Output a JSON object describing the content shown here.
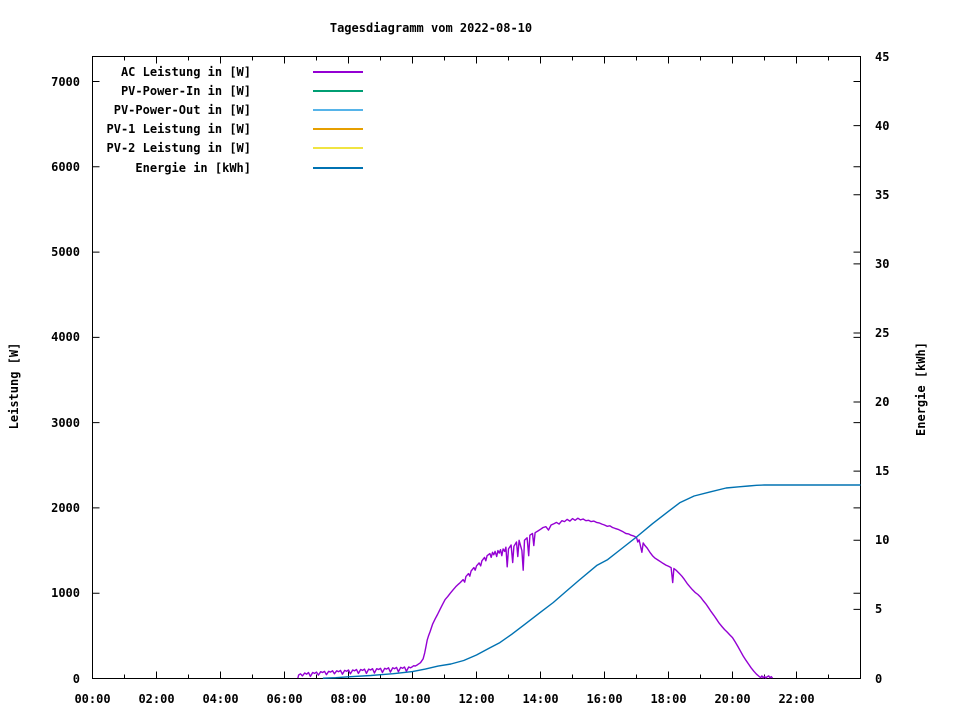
{
  "chart_data": {
    "type": "line",
    "title": "Tagesdiagramm vom 2022-08-10",
    "x_axis": {
      "unit": "time-of-day",
      "range_hours": [
        0,
        24
      ],
      "minor_tick_every_hours": 1,
      "grid": false,
      "major_ticks": [
        {
          "h": 0,
          "label": "00:00"
        },
        {
          "h": 2,
          "label": "02:00"
        },
        {
          "h": 4,
          "label": "04:00"
        },
        {
          "h": 6,
          "label": "06:00"
        },
        {
          "h": 8,
          "label": "08:00"
        },
        {
          "h": 10,
          "label": "10:00"
        },
        {
          "h": 12,
          "label": "12:00"
        },
        {
          "h": 14,
          "label": "14:00"
        },
        {
          "h": 16,
          "label": "16:00"
        },
        {
          "h": 18,
          "label": "18:00"
        },
        {
          "h": 20,
          "label": "20:00"
        },
        {
          "h": 22,
          "label": "22:00"
        }
      ]
    },
    "y_left": {
      "label": "Leistung [W]",
      "range": [
        0,
        7320
      ],
      "ticks": [
        0,
        1000,
        2000,
        3000,
        4000,
        5000,
        6000,
        7000
      ]
    },
    "y_right": {
      "label": "Energie [kWh]",
      "range": [
        0,
        45
      ],
      "ticks": [
        0,
        5,
        10,
        15,
        20,
        25,
        30,
        35,
        40,
        45
      ]
    },
    "legend": {
      "position": "top-left-inside",
      "entries": [
        {
          "id": "ac-leistung",
          "label": "AC Leistung in [W]",
          "color": "#9400d3"
        },
        {
          "id": "pv-power-in",
          "label": "PV-Power-In in [W]",
          "color": "#009e73"
        },
        {
          "id": "pv-power-out",
          "label": "PV-Power-Out in [W]",
          "color": "#56b4e9"
        },
        {
          "id": "pv1-leistung",
          "label": "PV-1 Leistung in [W]",
          "color": "#e69f00"
        },
        {
          "id": "pv2-leistung",
          "label": "PV-2 Leistung in [W]",
          "color": "#f0e442"
        },
        {
          "id": "energie",
          "label": "Energie in [kWh]",
          "color": "#0072b2"
        }
      ]
    },
    "series": [
      {
        "id": "ac-leistung",
        "name": "AC Leistung in [W]",
        "axis": "left",
        "color": "#9400d3",
        "points": [
          [
            6.42,
            5
          ],
          [
            6.44,
            40
          ],
          [
            6.5,
            55
          ],
          [
            6.56,
            30
          ],
          [
            6.63,
            65
          ],
          [
            6.69,
            50
          ],
          [
            6.75,
            70
          ],
          [
            6.81,
            25
          ],
          [
            6.88,
            70
          ],
          [
            6.94,
            60
          ],
          [
            7.0,
            75
          ],
          [
            7.06,
            40
          ],
          [
            7.13,
            80
          ],
          [
            7.19,
            70
          ],
          [
            7.25,
            85
          ],
          [
            7.31,
            45
          ],
          [
            7.38,
            85
          ],
          [
            7.44,
            75
          ],
          [
            7.5,
            90
          ],
          [
            7.56,
            55
          ],
          [
            7.63,
            90
          ],
          [
            7.69,
            80
          ],
          [
            7.75,
            95
          ],
          [
            7.81,
            50
          ],
          [
            7.88,
            95
          ],
          [
            7.94,
            85
          ],
          [
            8.0,
            100
          ],
          [
            8.06,
            55
          ],
          [
            8.13,
            100
          ],
          [
            8.19,
            90
          ],
          [
            8.25,
            105
          ],
          [
            8.31,
            60
          ],
          [
            8.38,
            105
          ],
          [
            8.44,
            95
          ],
          [
            8.5,
            110
          ],
          [
            8.56,
            60
          ],
          [
            8.63,
            110
          ],
          [
            8.69,
            100
          ],
          [
            8.75,
            115
          ],
          [
            8.81,
            65
          ],
          [
            8.88,
            115
          ],
          [
            8.94,
            105
          ],
          [
            9.0,
            120
          ],
          [
            9.06,
            70
          ],
          [
            9.13,
            120
          ],
          [
            9.19,
            110
          ],
          [
            9.25,
            125
          ],
          [
            9.31,
            75
          ],
          [
            9.38,
            125
          ],
          [
            9.44,
            115
          ],
          [
            9.5,
            130
          ],
          [
            9.56,
            80
          ],
          [
            9.63,
            130
          ],
          [
            9.69,
            120
          ],
          [
            9.75,
            135
          ],
          [
            9.81,
            85
          ],
          [
            9.88,
            135
          ],
          [
            9.94,
            125
          ],
          [
            10.0,
            140
          ],
          [
            10.04,
            150
          ],
          [
            10.08,
            145
          ],
          [
            10.13,
            155
          ],
          [
            10.17,
            165
          ],
          [
            10.25,
            185
          ],
          [
            10.33,
            230
          ],
          [
            10.38,
            300
          ],
          [
            10.42,
            370
          ],
          [
            10.46,
            450
          ],
          [
            10.5,
            500
          ],
          [
            10.55,
            550
          ],
          [
            10.63,
            640
          ],
          [
            10.71,
            700
          ],
          [
            10.78,
            750
          ],
          [
            10.86,
            810
          ],
          [
            10.94,
            870
          ],
          [
            11.02,
            925
          ],
          [
            11.1,
            960
          ],
          [
            11.18,
            1000
          ],
          [
            11.27,
            1040
          ],
          [
            11.35,
            1075
          ],
          [
            11.43,
            1105
          ],
          [
            11.49,
            1125
          ],
          [
            11.58,
            1160
          ],
          [
            11.63,
            1130
          ],
          [
            11.67,
            1195
          ],
          [
            11.75,
            1230
          ],
          [
            11.79,
            1200
          ],
          [
            11.83,
            1260
          ],
          [
            11.92,
            1300
          ],
          [
            11.96,
            1270
          ],
          [
            12.0,
            1320
          ],
          [
            12.08,
            1355
          ],
          [
            12.13,
            1320
          ],
          [
            12.17,
            1380
          ],
          [
            12.25,
            1420
          ],
          [
            12.29,
            1380
          ],
          [
            12.33,
            1440
          ],
          [
            12.42,
            1465
          ],
          [
            12.46,
            1420
          ],
          [
            12.5,
            1480
          ],
          [
            12.54,
            1450
          ],
          [
            12.58,
            1490
          ],
          [
            12.63,
            1430
          ],
          [
            12.67,
            1500
          ],
          [
            12.71,
            1470
          ],
          [
            12.75,
            1510
          ],
          [
            12.79,
            1440
          ],
          [
            12.83,
            1520
          ],
          [
            12.88,
            1490
          ],
          [
            12.92,
            1540
          ],
          [
            12.96,
            1310
          ],
          [
            13.0,
            1520
          ],
          [
            13.08,
            1565
          ],
          [
            13.13,
            1360
          ],
          [
            13.17,
            1550
          ],
          [
            13.25,
            1600
          ],
          [
            13.29,
            1430
          ],
          [
            13.33,
            1620
          ],
          [
            13.42,
            1500
          ],
          [
            13.46,
            1270
          ],
          [
            13.5,
            1620
          ],
          [
            13.58,
            1650
          ],
          [
            13.63,
            1440
          ],
          [
            13.67,
            1680
          ],
          [
            13.75,
            1700
          ],
          [
            13.79,
            1560
          ],
          [
            13.83,
            1710
          ],
          [
            13.92,
            1730
          ],
          [
            14.0,
            1750
          ],
          [
            14.08,
            1770
          ],
          [
            14.17,
            1780
          ],
          [
            14.25,
            1740
          ],
          [
            14.33,
            1800
          ],
          [
            14.42,
            1815
          ],
          [
            14.5,
            1830
          ],
          [
            14.58,
            1810
          ],
          [
            14.67,
            1850
          ],
          [
            14.75,
            1840
          ],
          [
            14.83,
            1865
          ],
          [
            14.92,
            1845
          ],
          [
            15.0,
            1875
          ],
          [
            15.08,
            1855
          ],
          [
            15.17,
            1880
          ],
          [
            15.25,
            1860
          ],
          [
            15.33,
            1870
          ],
          [
            15.42,
            1850
          ],
          [
            15.5,
            1855
          ],
          [
            15.58,
            1840
          ],
          [
            15.67,
            1845
          ],
          [
            15.75,
            1830
          ],
          [
            15.83,
            1825
          ],
          [
            15.92,
            1810
          ],
          [
            16.0,
            1800
          ],
          [
            16.08,
            1785
          ],
          [
            16.17,
            1790
          ],
          [
            16.25,
            1770
          ],
          [
            16.33,
            1760
          ],
          [
            16.42,
            1750
          ],
          [
            16.5,
            1735
          ],
          [
            16.58,
            1720
          ],
          [
            16.67,
            1700
          ],
          [
            16.75,
            1695
          ],
          [
            16.83,
            1680
          ],
          [
            16.92,
            1670
          ],
          [
            17.0,
            1655
          ],
          [
            17.04,
            1600
          ],
          [
            17.08,
            1625
          ],
          [
            17.17,
            1480
          ],
          [
            17.21,
            1590
          ],
          [
            17.25,
            1565
          ],
          [
            17.33,
            1530
          ],
          [
            17.42,
            1480
          ],
          [
            17.5,
            1440
          ],
          [
            17.58,
            1410
          ],
          [
            17.67,
            1390
          ],
          [
            17.75,
            1370
          ],
          [
            17.83,
            1350
          ],
          [
            17.92,
            1330
          ],
          [
            18.0,
            1315
          ],
          [
            18.08,
            1300
          ],
          [
            18.13,
            1125
          ],
          [
            18.17,
            1290
          ],
          [
            18.25,
            1265
          ],
          [
            18.33,
            1235
          ],
          [
            18.42,
            1200
          ],
          [
            18.5,
            1160
          ],
          [
            18.58,
            1115
          ],
          [
            18.67,
            1075
          ],
          [
            18.75,
            1040
          ],
          [
            18.83,
            1010
          ],
          [
            18.92,
            985
          ],
          [
            19.0,
            955
          ],
          [
            19.08,
            915
          ],
          [
            19.17,
            875
          ],
          [
            19.25,
            830
          ],
          [
            19.33,
            785
          ],
          [
            19.42,
            740
          ],
          [
            19.5,
            695
          ],
          [
            19.58,
            650
          ],
          [
            19.67,
            610
          ],
          [
            19.75,
            575
          ],
          [
            19.83,
            545
          ],
          [
            19.92,
            510
          ],
          [
            20.0,
            480
          ],
          [
            20.08,
            430
          ],
          [
            20.17,
            375
          ],
          [
            20.25,
            320
          ],
          [
            20.33,
            265
          ],
          [
            20.42,
            215
          ],
          [
            20.5,
            170
          ],
          [
            20.58,
            125
          ],
          [
            20.67,
            85
          ],
          [
            20.75,
            50
          ],
          [
            20.83,
            25
          ],
          [
            20.88,
            10
          ],
          [
            20.92,
            30
          ],
          [
            20.96,
            8
          ],
          [
            21.0,
            25
          ],
          [
            21.04,
            6
          ],
          [
            21.08,
            20
          ],
          [
            21.13,
            30
          ],
          [
            21.17,
            8
          ],
          [
            21.21,
            22
          ],
          [
            21.25,
            5
          ]
        ]
      },
      {
        "id": "energie",
        "name": "Energie in [kWh]",
        "axis": "right",
        "color": "#0072b2",
        "points": [
          [
            7.2,
            0.02
          ],
          [
            7.6,
            0.06
          ],
          [
            8.0,
            0.12
          ],
          [
            8.7,
            0.22
          ],
          [
            9.4,
            0.35
          ],
          [
            10.0,
            0.5
          ],
          [
            10.4,
            0.68
          ],
          [
            10.8,
            0.9
          ],
          [
            11.2,
            1.05
          ],
          [
            11.6,
            1.3
          ],
          [
            12.0,
            1.7
          ],
          [
            12.4,
            2.2
          ],
          [
            12.73,
            2.6
          ],
          [
            13.1,
            3.2
          ],
          [
            13.5,
            3.9
          ],
          [
            13.98,
            4.76
          ],
          [
            14.4,
            5.5
          ],
          [
            14.8,
            6.3
          ],
          [
            15.2,
            7.1
          ],
          [
            15.77,
            8.2
          ],
          [
            16.1,
            8.6
          ],
          [
            16.48,
            9.3
          ],
          [
            17.0,
            10.24
          ],
          [
            17.5,
            11.2
          ],
          [
            18.0,
            12.1
          ],
          [
            18.35,
            12.71
          ],
          [
            18.8,
            13.2
          ],
          [
            19.3,
            13.5
          ],
          [
            19.8,
            13.78
          ],
          [
            20.2,
            13.87
          ],
          [
            20.5,
            13.93
          ],
          [
            20.75,
            13.98
          ],
          [
            21.0,
            14.0
          ],
          [
            22.0,
            14.0
          ],
          [
            23.0,
            14.0
          ],
          [
            24.0,
            14.0
          ]
        ]
      },
      {
        "id": "pv-power-in",
        "name": "PV-Power-In in [W]",
        "axis": "left",
        "color": "#009e73",
        "points": []
      },
      {
        "id": "pv-power-out",
        "name": "PV-Power-Out in [W]",
        "axis": "left",
        "color": "#56b4e9",
        "points": []
      },
      {
        "id": "pv1-leistung",
        "name": "PV-1 Leistung in [W]",
        "axis": "left",
        "color": "#e69f00",
        "points": []
      },
      {
        "id": "pv2-leistung",
        "name": "PV-2 Leistung in [W]",
        "axis": "left",
        "color": "#f0e442",
        "points": []
      }
    ],
    "colors": {
      "text": "#000000",
      "background": "#ffffff",
      "border": "#000000"
    }
  }
}
